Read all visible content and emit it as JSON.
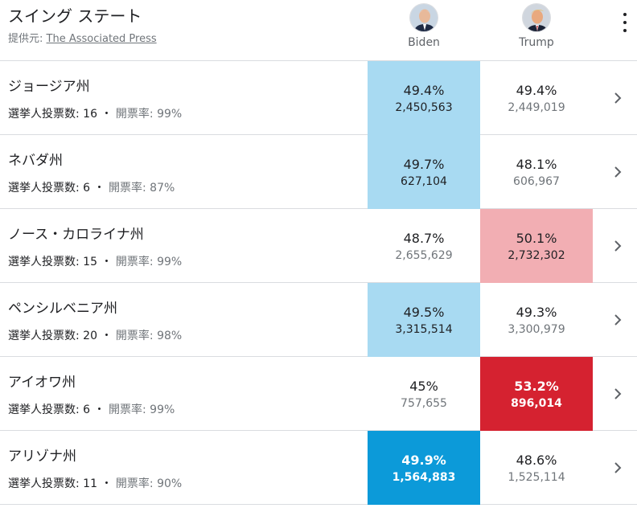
{
  "header": {
    "title": "スイング ステート",
    "source_label": "提供元: ",
    "source_link": "The Associated Press",
    "candidates": [
      {
        "name": "Biden",
        "color": "#0c9ad9"
      },
      {
        "name": "Trump",
        "color": "#d52230"
      }
    ]
  },
  "labels": {
    "electoral_votes": "選挙人投票数: ",
    "separator": " ・ ",
    "reporting": "開票率: "
  },
  "states": [
    {
      "name": "ジョージア州",
      "electoral_votes": "16",
      "reporting": "99%",
      "biden": {
        "pct": "49.4%",
        "votes": "2,450,563"
      },
      "trump": {
        "pct": "49.4%",
        "votes": "2,449,019"
      }
    },
    {
      "name": "ネバダ州",
      "electoral_votes": "6",
      "reporting": "87%",
      "biden": {
        "pct": "49.7%",
        "votes": "627,104"
      },
      "trump": {
        "pct": "48.1%",
        "votes": "606,967"
      }
    },
    {
      "name": "ノース・カロライナ州",
      "electoral_votes": "15",
      "reporting": "99%",
      "biden": {
        "pct": "48.7%",
        "votes": "2,655,629"
      },
      "trump": {
        "pct": "50.1%",
        "votes": "2,732,302"
      }
    },
    {
      "name": "ペンシルベニア州",
      "electoral_votes": "20",
      "reporting": "98%",
      "biden": {
        "pct": "49.5%",
        "votes": "3,315,514"
      },
      "trump": {
        "pct": "49.3%",
        "votes": "3,300,979"
      }
    },
    {
      "name": "アイオワ州",
      "electoral_votes": "6",
      "reporting": "99%",
      "biden": {
        "pct": "45%",
        "votes": "757,655"
      },
      "trump": {
        "pct": "53.2%",
        "votes": "896,014"
      }
    },
    {
      "name": "アリゾナ州",
      "electoral_votes": "11",
      "reporting": "90%",
      "biden": {
        "pct": "49.9%",
        "votes": "1,564,883"
      },
      "trump": {
        "pct": "48.6%",
        "votes": "1,525,114"
      }
    }
  ]
}
